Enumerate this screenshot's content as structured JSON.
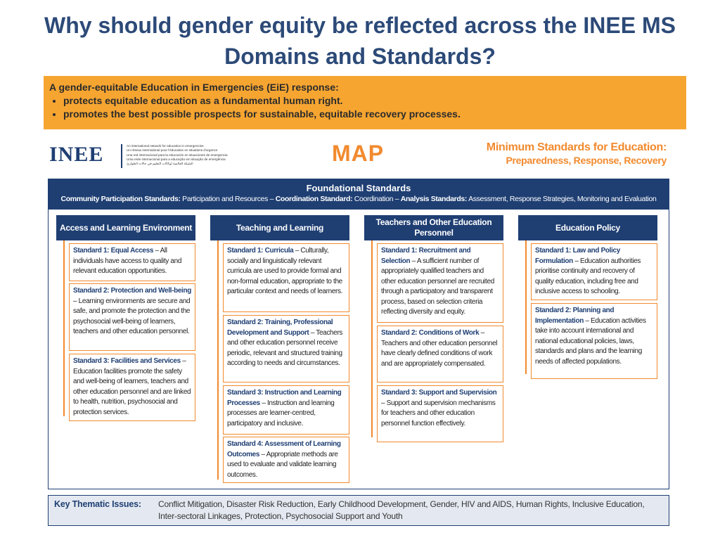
{
  "title": "Why should gender equity be reflected across the INEE MS Domains and Standards?",
  "callout": {
    "intro": "A gender-equitable Education in Emergencies (EiE) response:",
    "bullets": [
      "protects equitable education as a fundamental human right.",
      "promotes the best possible prospects for sustainable, equitable recovery processes."
    ]
  },
  "logo": {
    "name": "INEE",
    "tagline": [
      "An international network for education in emergencies",
      "Un réseau international pour l'éducation en situations d'urgence",
      "Una red internacional para la educación en situaciones de emergencia",
      "Uma rede internacional para a educação em situação de emergência",
      "الشبكة العالمية لوكالات التعليم في حالات الطوارئ"
    ]
  },
  "map_title": "MAP",
  "ms_title": {
    "line1": "Minimum Standards for Education:",
    "line2": "Preparedness, Response, Recovery"
  },
  "foundational": {
    "title": "Foundational Standards",
    "cp_label": "Community Participation Standards:",
    "cp_text": " Participation and Resources – ",
    "coord_label": "Coordination Standard:",
    "coord_text": " Coordination – ",
    "analysis_label": "Analysis Standards:",
    "analysis_text": " Assessment, Response Strategies, Monitoring and Evaluation"
  },
  "domains": [
    {
      "header": "Access and Learning Environment",
      "standards": [
        {
          "title": "Standard 1: Equal Access",
          "text": " – All individuals have access to quality and relevant education opportunities."
        },
        {
          "title": "Standard 2: Protection and Well-being",
          "text": " – Learning environments are secure and safe, and promote the protection and the psychosocial well-being of learners, teachers and other education personnel."
        },
        {
          "title": "Standard 3: Facilities and Services",
          "text": " – Education facilities promote the safety and well-being of learners, teachers and other education personnel and are linked to health, nutrition, psychosocial and protection services."
        }
      ]
    },
    {
      "header": "Teaching and Learning",
      "standards": [
        {
          "title": "Standard 1: Curricula",
          "text": " – Culturally, socially and linguistically relevant curricula are used to provide formal and non-formal education, appropriate to the particular context and needs of learners."
        },
        {
          "title": "Standard 2: Training, Professional Development and Support",
          "text": " – Teachers and other education personnel receive periodic, relevant and structured training according to needs and circumstances."
        },
        {
          "title": "Standard 3: Instruction and Learning Processes",
          "text": " – Instruction and learning processes are learner-centred, participatory and inclusive."
        },
        {
          "title": "Standard 4: Assessment of Learning Outcomes",
          "text": " – Appropriate methods are used to evaluate and validate learning outcomes."
        }
      ]
    },
    {
      "header": "Teachers and Other Education Personnel",
      "standards": [
        {
          "title": "Standard 1: Recruitment and Selection",
          "text": " – A sufficient number of appropriately qualified teachers and other education personnel are recruited through a participatory and transparent process, based on selection criteria reflecting diversity and equity."
        },
        {
          "title": "Standard 2: Conditions of Work",
          "text": " – Teachers and other education personnel have clearly defined conditions of work and are appropriately compensated."
        },
        {
          "title": "Standard 3: Support and Supervision",
          "text": " – Support and supervision mechanisms for teachers and other education personnel function effectively."
        }
      ]
    },
    {
      "header": "Education Policy",
      "standards": [
        {
          "title": "Standard 1: Law and Policy Formulation",
          "text": " – Education authorities prioritise continuity and recovery of quality education, including free and inclusive access to schooling."
        },
        {
          "title": "Standard 2: Planning and Implementation",
          "text": " – Education activities take into account international and national educational policies, laws, standards and plans and the learning needs of affected populations."
        }
      ]
    }
  ],
  "key_issues": {
    "label": "Key Thematic Issues:",
    "text": "Conflict Mitigation, Disaster Risk Reduction, Early Childhood Development, Gender, HIV and AIDS, Human Rights, Inclusive Education, Inter-sectoral Linkages, Protection, Psychosocial Support and Youth"
  },
  "colors": {
    "navy": "#1f3f73",
    "orange": "#f28a2e",
    "callout": "#f6a531",
    "title": "#2c4a78"
  }
}
